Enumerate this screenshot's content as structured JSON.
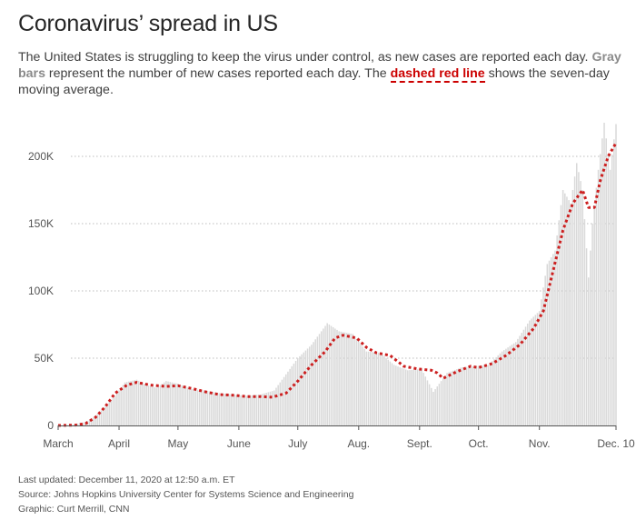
{
  "header": {
    "title": "Coronavirus’ spread in US",
    "desc_1": "The United States is struggling to keep the virus under control, as new cases are reported each day. ",
    "desc_gray": "Gray bars",
    "desc_2": " represent the number of new cases reported each day. The ",
    "desc_red": "dashed red line",
    "desc_3": " shows the seven-day moving average."
  },
  "footer": {
    "updated": "Last updated: December 11, 2020 at 12:50 a.m. ET",
    "source": "Source: Johns Hopkins University Center for Systems Science and Engineering",
    "graphic": "Graphic: Curt Merrill, CNN"
  },
  "colors": {
    "bar": "#d9d9d9",
    "line": "#cc1f1f",
    "grid": "#bdbdbd",
    "axis": "#555555"
  },
  "chart_data": {
    "type": "bar",
    "ylim": [
      0,
      225000
    ],
    "grid": true,
    "y_ticks": [
      {
        "value": 0,
        "label": "0"
      },
      {
        "value": 50000,
        "label": "50K"
      },
      {
        "value": 100000,
        "label": "100K"
      },
      {
        "value": 150000,
        "label": "150K"
      },
      {
        "value": 200000,
        "label": "200K"
      }
    ],
    "x_ticks": [
      {
        "date": "2020-03-01",
        "label": "March"
      },
      {
        "date": "2020-04-01",
        "label": "April"
      },
      {
        "date": "2020-05-01",
        "label": "May"
      },
      {
        "date": "2020-06-01",
        "label": "June"
      },
      {
        "date": "2020-07-01",
        "label": "July"
      },
      {
        "date": "2020-08-01",
        "label": "Aug."
      },
      {
        "date": "2020-09-01",
        "label": "Sept."
      },
      {
        "date": "2020-10-01",
        "label": "Oct."
      },
      {
        "date": "2020-11-01",
        "label": "Nov."
      },
      {
        "date": "2020-12-10",
        "label": "Dec. 10"
      }
    ],
    "series": [
      {
        "kind": "bars",
        "points": [
          [
            "2020-03-01",
            0
          ],
          [
            "2020-03-08",
            400
          ],
          [
            "2020-03-15",
            2500
          ],
          [
            "2020-03-20",
            7000
          ],
          [
            "2020-03-25",
            14000
          ],
          [
            "2020-03-30",
            22000
          ],
          [
            "2020-04-04",
            32000
          ],
          [
            "2020-04-10",
            34000
          ],
          [
            "2020-04-15",
            30000
          ],
          [
            "2020-04-20",
            28000
          ],
          [
            "2020-04-25",
            33000
          ],
          [
            "2020-05-01",
            31000
          ],
          [
            "2020-05-08",
            27000
          ],
          [
            "2020-05-15",
            26000
          ],
          [
            "2020-05-22",
            24000
          ],
          [
            "2020-05-29",
            23000
          ],
          [
            "2020-06-05",
            22000
          ],
          [
            "2020-06-12",
            23000
          ],
          [
            "2020-06-19",
            26000
          ],
          [
            "2020-06-26",
            40000
          ],
          [
            "2020-07-01",
            50000
          ],
          [
            "2020-07-08",
            60000
          ],
          [
            "2020-07-16",
            76000
          ],
          [
            "2020-07-22",
            70000
          ],
          [
            "2020-07-29",
            68000
          ],
          [
            "2020-08-05",
            55000
          ],
          [
            "2020-08-12",
            54000
          ],
          [
            "2020-08-19",
            45000
          ],
          [
            "2020-08-26",
            41000
          ],
          [
            "2020-09-02",
            42000
          ],
          [
            "2020-09-08",
            25000
          ],
          [
            "2020-09-15",
            39000
          ],
          [
            "2020-09-22",
            43000
          ],
          [
            "2020-09-29",
            44000
          ],
          [
            "2020-10-06",
            45000
          ],
          [
            "2020-10-13",
            55000
          ],
          [
            "2020-10-20",
            62000
          ],
          [
            "2020-10-27",
            78000
          ],
          [
            "2020-11-01",
            85000
          ],
          [
            "2020-11-05",
            120000
          ],
          [
            "2020-11-09",
            130000
          ],
          [
            "2020-11-13",
            175000
          ],
          [
            "2020-11-17",
            165000
          ],
          [
            "2020-11-20",
            195000
          ],
          [
            "2020-11-23",
            175000
          ],
          [
            "2020-11-26",
            110000
          ],
          [
            "2020-11-28",
            150000
          ],
          [
            "2020-12-01",
            190000
          ],
          [
            "2020-12-04",
            225000
          ],
          [
            "2020-12-07",
            190000
          ],
          [
            "2020-12-10",
            224000
          ]
        ]
      },
      {
        "kind": "line",
        "points": [
          [
            "2020-03-01",
            0
          ],
          [
            "2020-03-10",
            300
          ],
          [
            "2020-03-15",
            1500
          ],
          [
            "2020-03-20",
            6000
          ],
          [
            "2020-03-25",
            14000
          ],
          [
            "2020-03-30",
            24000
          ],
          [
            "2020-04-05",
            30000
          ],
          [
            "2020-04-10",
            32000
          ],
          [
            "2020-04-17",
            30000
          ],
          [
            "2020-04-25",
            29000
          ],
          [
            "2020-05-01",
            29500
          ],
          [
            "2020-05-08",
            27500
          ],
          [
            "2020-05-15",
            25000
          ],
          [
            "2020-05-22",
            23000
          ],
          [
            "2020-05-29",
            22500
          ],
          [
            "2020-06-05",
            21500
          ],
          [
            "2020-06-12",
            21500
          ],
          [
            "2020-06-18",
            21000
          ],
          [
            "2020-06-25",
            24000
          ],
          [
            "2020-07-01",
            33000
          ],
          [
            "2020-07-08",
            45000
          ],
          [
            "2020-07-15",
            55000
          ],
          [
            "2020-07-20",
            65000
          ],
          [
            "2020-07-24",
            67000
          ],
          [
            "2020-07-31",
            65000
          ],
          [
            "2020-08-05",
            58000
          ],
          [
            "2020-08-10",
            54000
          ],
          [
            "2020-08-17",
            52000
          ],
          [
            "2020-08-24",
            44000
          ],
          [
            "2020-08-31",
            42000
          ],
          [
            "2020-09-07",
            41000
          ],
          [
            "2020-09-10",
            39000
          ],
          [
            "2020-09-13",
            35000
          ],
          [
            "2020-09-20",
            40000
          ],
          [
            "2020-09-27",
            44000
          ],
          [
            "2020-10-01",
            43000
          ],
          [
            "2020-10-08",
            46000
          ],
          [
            "2020-10-15",
            52000
          ],
          [
            "2020-10-22",
            60000
          ],
          [
            "2020-10-29",
            72000
          ],
          [
            "2020-11-03",
            85000
          ],
          [
            "2020-11-08",
            115000
          ],
          [
            "2020-11-13",
            145000
          ],
          [
            "2020-11-18",
            165000
          ],
          [
            "2020-11-23",
            175000
          ],
          [
            "2020-11-26",
            162000
          ],
          [
            "2020-11-29",
            162000
          ],
          [
            "2020-12-02",
            182000
          ],
          [
            "2020-12-06",
            200000
          ],
          [
            "2020-12-10",
            210000
          ]
        ]
      }
    ]
  }
}
